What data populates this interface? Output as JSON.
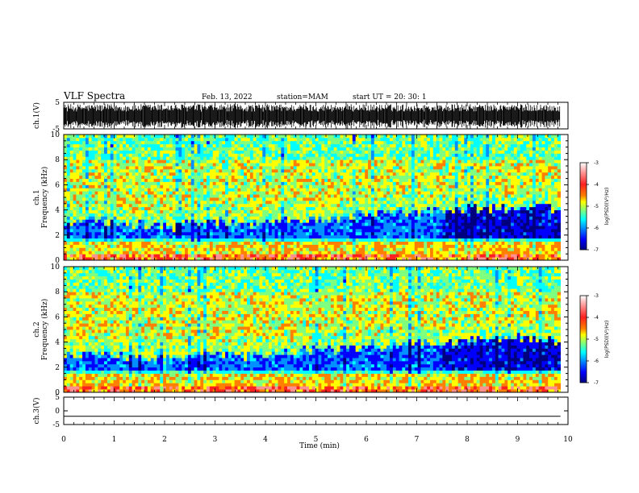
{
  "header": {
    "title": "VLF Spectra",
    "date": "Feb. 13, 2022",
    "station": "station=MAM",
    "start": "start UT =  20: 30: 1"
  },
  "colors": {
    "scale": [
      "#00007f",
      "#0000ff",
      "#0090ff",
      "#00ffff",
      "#7fff7f",
      "#ffff00",
      "#ff8000",
      "#ff2020",
      "#ff9090",
      "#ffffff"
    ],
    "trace": "#000000"
  },
  "chart_data": [
    {
      "type": "line",
      "panel": "ch1-waveform",
      "ylabel": "ch.1(V)",
      "ylim": [
        -5,
        5
      ],
      "yticks": [
        "5",
        "-5"
      ],
      "xlim": [
        0,
        10
      ],
      "signal": "dense noise trace, approx -4 to +4 V"
    },
    {
      "type": "heatmap",
      "panel": "ch1-spectrogram",
      "ylabel": "ch.1\nFrequency (kHz)",
      "ylabel_lines": [
        "ch.1",
        "Frequency (kHz)"
      ],
      "ylim": [
        0,
        10
      ],
      "yticks": [
        "0",
        "2",
        "4",
        "6",
        "8",
        "10"
      ],
      "xlim": [
        0,
        9.85
      ],
      "colorbar": {
        "label": "log(PSD)(V²/Hz)",
        "ticks": [
          "-3",
          "-4",
          "-5",
          "-6",
          "-7"
        ],
        "range": [
          -7,
          -3
        ]
      },
      "times": [
        0,
        0.5,
        1,
        1.5,
        2,
        2.5,
        3,
        3.5,
        4,
        4.5,
        5,
        5.5,
        6,
        6.5,
        7,
        7.5,
        8,
        8.5,
        9,
        9.5
      ],
      "band_top_khz": [
        2.8,
        3.3,
        3.0,
        2.9,
        2.6,
        2.9,
        3.1,
        3.0,
        3.0,
        3.2,
        3.3,
        3.4,
        3.8,
        3.7,
        3.9,
        4.0,
        4.1,
        4.2,
        4.2,
        4.2
      ]
    },
    {
      "type": "heatmap",
      "panel": "ch2-spectrogram",
      "ylabel": "ch.2\nFrequency (kHz)",
      "ylabel_lines": [
        "ch.2",
        "Frequency (kHz)"
      ],
      "ylim": [
        0,
        10
      ],
      "yticks": [
        "0",
        "2",
        "4",
        "6",
        "8",
        "10"
      ],
      "xlim": [
        0,
        9.85
      ],
      "colorbar": {
        "label": "log(PSD)(V²/Hz)",
        "ticks": [
          "-3",
          "-4",
          "-5",
          "-6",
          "-7"
        ],
        "range": [
          -7,
          -3
        ]
      },
      "times": [
        0,
        0.5,
        1,
        1.5,
        2,
        2.5,
        3,
        3.5,
        4,
        4.5,
        5,
        5.5,
        6,
        6.5,
        7,
        7.5,
        8,
        8.5,
        9,
        9.5
      ],
      "band_top_khz": [
        2.8,
        3.2,
        3.0,
        2.9,
        2.6,
        2.9,
        3.1,
        3.0,
        3.0,
        3.2,
        3.3,
        3.4,
        3.8,
        3.7,
        3.9,
        4.0,
        4.1,
        4.2,
        4.3,
        4.2
      ]
    },
    {
      "type": "line",
      "panel": "ch3-waveform",
      "ylabel": "ch.3(V)",
      "ylim": [
        -5,
        5
      ],
      "yticks": [
        "5",
        "0",
        "-5"
      ],
      "xlim": [
        0,
        10
      ],
      "values": [
        -2,
        -2
      ]
    }
  ],
  "xaxis": {
    "label": "Time (min)",
    "ticks": [
      "0",
      "1",
      "2",
      "3",
      "4",
      "5",
      "6",
      "7",
      "8",
      "9",
      "10"
    ]
  }
}
